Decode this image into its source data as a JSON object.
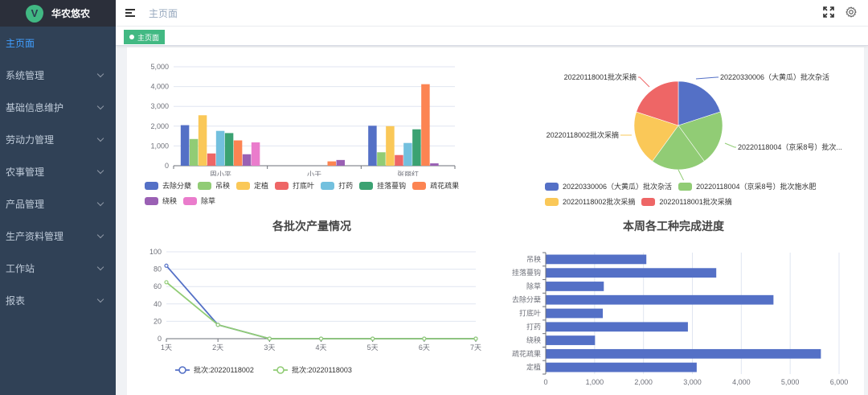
{
  "app": {
    "logo_letter": "V",
    "title": "华农悠农"
  },
  "sidebar": {
    "items": [
      {
        "label": "主页面",
        "active": true,
        "expandable": false
      },
      {
        "label": "系统管理",
        "expandable": true
      },
      {
        "label": "基础信息维护",
        "expandable": true
      },
      {
        "label": "劳动力管理",
        "expandable": true
      },
      {
        "label": "农事管理",
        "expandable": true
      },
      {
        "label": "产品管理",
        "expandable": true
      },
      {
        "label": "生产资料管理",
        "expandable": true
      },
      {
        "label": "工作站",
        "expandable": true
      },
      {
        "label": "报表",
        "expandable": true
      }
    ]
  },
  "navbar": {
    "breadcrumb": "主页面",
    "icons": [
      "fullscreen-icon",
      "settings-icon"
    ]
  },
  "tags": [
    {
      "label": "主页面",
      "active": true
    }
  ],
  "colors": {
    "accent": "#42b983",
    "sidebar_bg": "#304156",
    "active_menu": "#409eff"
  },
  "chart_data": [
    {
      "type": "bar",
      "title": "",
      "categories": [
        "周小平",
        "小于",
        "张丽红"
      ],
      "ylim": [
        0,
        5000
      ],
      "yticks": [
        "0",
        "1,000",
        "2,000",
        "3,000",
        "4,000",
        "5,000"
      ],
      "series": [
        {
          "name": "去除分蘖",
          "color": "#5470c6",
          "values": [
            2050,
            0,
            2020
          ]
        },
        {
          "name": "吊秧",
          "color": "#91cc75",
          "values": [
            1350,
            0,
            680
          ]
        },
        {
          "name": "定植",
          "color": "#fac858",
          "values": [
            2550,
            0,
            2000
          ]
        },
        {
          "name": "打底叶",
          "color": "#ee6666",
          "values": [
            620,
            0,
            540
          ]
        },
        {
          "name": "打药",
          "color": "#73c0de",
          "values": [
            1760,
            0,
            1150
          ]
        },
        {
          "name": "挂落蔓钩",
          "color": "#3ba272",
          "values": [
            1650,
            0,
            1840
          ]
        },
        {
          "name": "疏花疏果",
          "color": "#fc8452",
          "values": [
            1280,
            220,
            4120
          ]
        },
        {
          "name": "绕秧",
          "color": "#9a60b4",
          "values": [
            580,
            290,
            120
          ]
        },
        {
          "name": "除草",
          "color": "#ea7ccc",
          "values": [
            1180,
            0,
            0
          ]
        }
      ],
      "legend_position": "bottom"
    },
    {
      "type": "pie",
      "title": "",
      "slices": [
        {
          "name": "20220330006（大黄瓜）批次杂活",
          "label": "20220330006（大黄瓜）批次杂活",
          "value": 1,
          "color": "#5470c6"
        },
        {
          "name": "20220118004（京采8号）批次施水肥",
          "label": "20220118004（京采8号）批次...",
          "value": 1,
          "color": "#91cc75"
        },
        {
          "name": "20220118004（京采8号）批次施水肥",
          "label": "20220118004（京采8号）批次施水肥",
          "value": 1,
          "color": "#91cc75"
        },
        {
          "name": "20220118002批次采摘",
          "label": "20220118002批次采摘",
          "value": 1,
          "color": "#fac858"
        },
        {
          "name": "20220118001批次采摘",
          "label": "20220118001批次采摘",
          "value": 1,
          "color": "#ee6666"
        }
      ],
      "legend": [
        {
          "name": "20220330006（大黄瓜）批次杂活",
          "color": "#5470c6"
        },
        {
          "name": "20220118004（京采8号）批次施水肥",
          "color": "#91cc75"
        },
        {
          "name": "20220118002批次采摘",
          "color": "#fac858"
        },
        {
          "name": "20220118001批次采摘",
          "color": "#ee6666"
        }
      ],
      "legend_position": "bottom"
    },
    {
      "type": "line",
      "title": "各批次产量情况",
      "x": [
        "1天",
        "2天",
        "3天",
        "4天",
        "5天",
        "6天",
        "7天"
      ],
      "ylim": [
        0,
        100
      ],
      "yticks": [
        "0",
        "20",
        "40",
        "60",
        "80",
        "100"
      ],
      "series": [
        {
          "name": "批次:20220118002",
          "color": "#5470c6",
          "values": [
            84,
            16,
            0,
            0,
            0,
            0,
            0
          ]
        },
        {
          "name": "批次:20220118003",
          "color": "#91cc75",
          "values": [
            65,
            16,
            0,
            0,
            0,
            0,
            0
          ]
        }
      ],
      "legend_position": "bottom"
    },
    {
      "type": "bar",
      "orientation": "horizontal",
      "title": "本周各工种完成进度",
      "categories": [
        "吊秧",
        "挂落蔓钩",
        "除草",
        "去除分蘖",
        "打底叶",
        "打药",
        "绕秧",
        "疏花疏果",
        "定植"
      ],
      "values": [
        2050,
        3480,
        1180,
        4650,
        1160,
        2900,
        1000,
        5620,
        3080
      ],
      "color": "#5470c6",
      "xlim": [
        0,
        6000
      ],
      "xticks": [
        "0",
        "1,000",
        "2,000",
        "3,000",
        "4,000",
        "5,000",
        "6,000"
      ]
    }
  ]
}
